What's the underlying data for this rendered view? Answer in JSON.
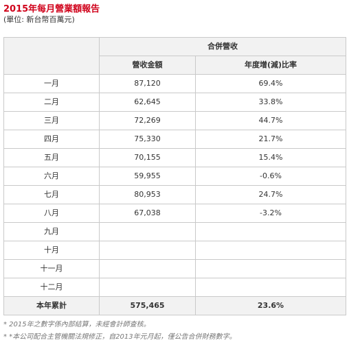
{
  "title": "2015年每月營業額報告",
  "unit": "(單位: 新台幣百萬元)",
  "table": {
    "group_header": "合併營收",
    "columns": [
      "營收金額",
      "年度增(減)比率"
    ],
    "rows": [
      {
        "month": "一月",
        "revenue": "87,120",
        "growth": "69.4%"
      },
      {
        "month": "二月",
        "revenue": "62,645",
        "growth": "33.8%"
      },
      {
        "month": "三月",
        "revenue": "72,269",
        "growth": "44.7%"
      },
      {
        "month": "四月",
        "revenue": "75,330",
        "growth": "21.7%"
      },
      {
        "month": "五月",
        "revenue": "70,155",
        "growth": "15.4%"
      },
      {
        "month": "六月",
        "revenue": "59,955",
        "growth": "-0.6%"
      },
      {
        "month": "七月",
        "revenue": "80,953",
        "growth": "24.7%"
      },
      {
        "month": "八月",
        "revenue": "67,038",
        "growth": "-3.2%"
      },
      {
        "month": "九月",
        "revenue": "",
        "growth": ""
      },
      {
        "month": "十月",
        "revenue": "",
        "growth": ""
      },
      {
        "month": "十一月",
        "revenue": "",
        "growth": ""
      },
      {
        "month": "十二月",
        "revenue": "",
        "growth": ""
      }
    ],
    "total": {
      "label": "本年累計",
      "revenue": "575,465",
      "growth": "23.6%"
    }
  },
  "notes": [
    "* 2015年之數字係內部結算，未經會計師查核。",
    "* *本公司配合主管機關法規修正，自2013年元月起，僅公告合併財務數字。"
  ]
}
